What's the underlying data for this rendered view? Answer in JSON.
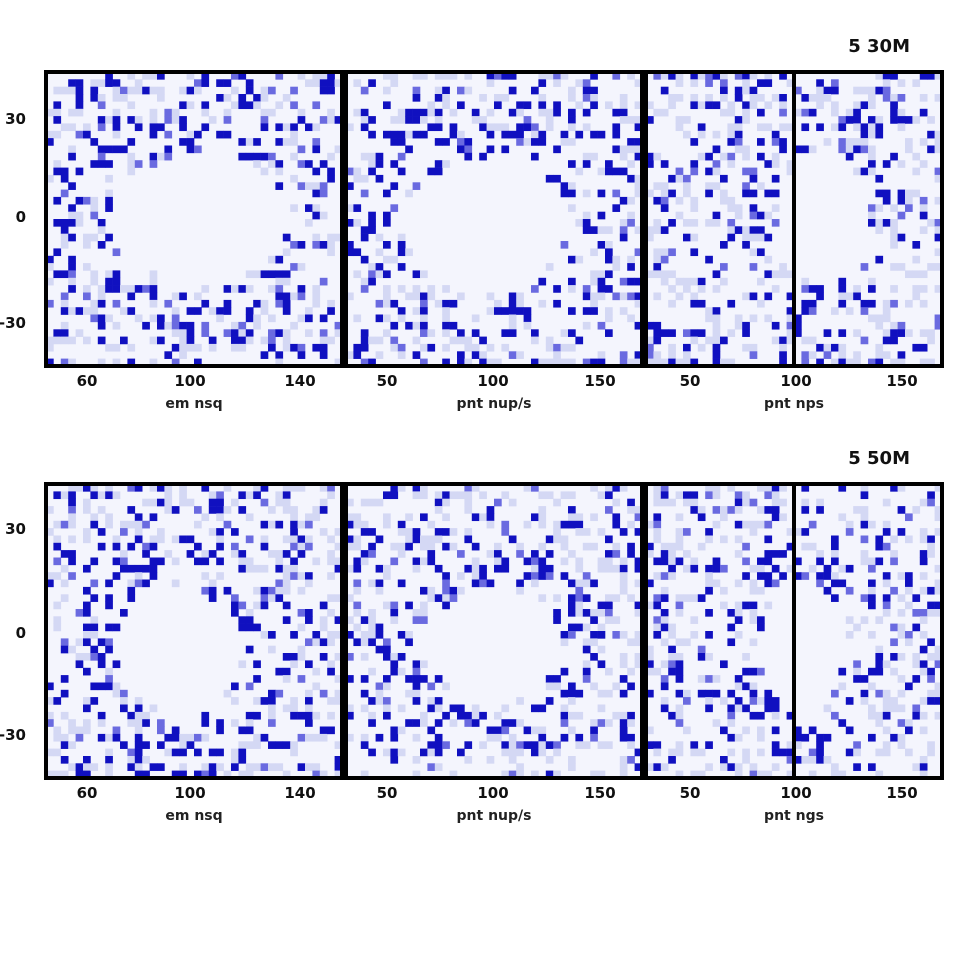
{
  "chart_data": {
    "type": "heatmap",
    "colors": {
      "high": "#1010c0",
      "mid": "#6a6ae0",
      "low": "#d4d8f4",
      "frame": "#000000"
    },
    "rows": [
      {
        "label": "5 30M",
        "y_ticks": [
          "30",
          "0",
          "-30"
        ],
        "panels": [
          {
            "x_ticks": [
              "60",
              "100",
              "140"
            ],
            "xlabel": "em nsq",
            "divider": false,
            "hole": [
              0.52,
              0.5,
              0.3,
              0.22
            ]
          },
          {
            "x_ticks": [
              "50",
              "100",
              "150"
            ],
            "xlabel": "pnt nup/s",
            "divider": false,
            "hole": [
              0.47,
              0.52,
              0.28,
              0.22
            ]
          },
          {
            "x_ticks": [
              "50",
              "100",
              "150"
            ],
            "xlabel": "pnt nps",
            "divider": true,
            "hole": [
              0.6,
              0.5,
              0.15,
              0.22
            ]
          }
        ]
      },
      {
        "label": "5 50M",
        "y_ticks": [
          "30",
          "0",
          "-30"
        ],
        "panels": [
          {
            "x_ticks": [
              "60",
              "100",
              "140"
            ],
            "xlabel": "em nsq",
            "divider": false,
            "hole": [
              0.45,
              0.56,
              0.22,
              0.2
            ]
          },
          {
            "x_ticks": [
              "50",
              "100",
              "150"
            ],
            "xlabel": "pnt nup/s",
            "divider": false,
            "hole": [
              0.5,
              0.55,
              0.22,
              0.2
            ]
          },
          {
            "x_ticks": [
              "50",
              "100",
              "150"
            ],
            "xlabel": "pnt ngs",
            "divider": true,
            "hole": [
              0.53,
              0.55,
              0.14,
              0.22
            ]
          }
        ]
      }
    ]
  }
}
